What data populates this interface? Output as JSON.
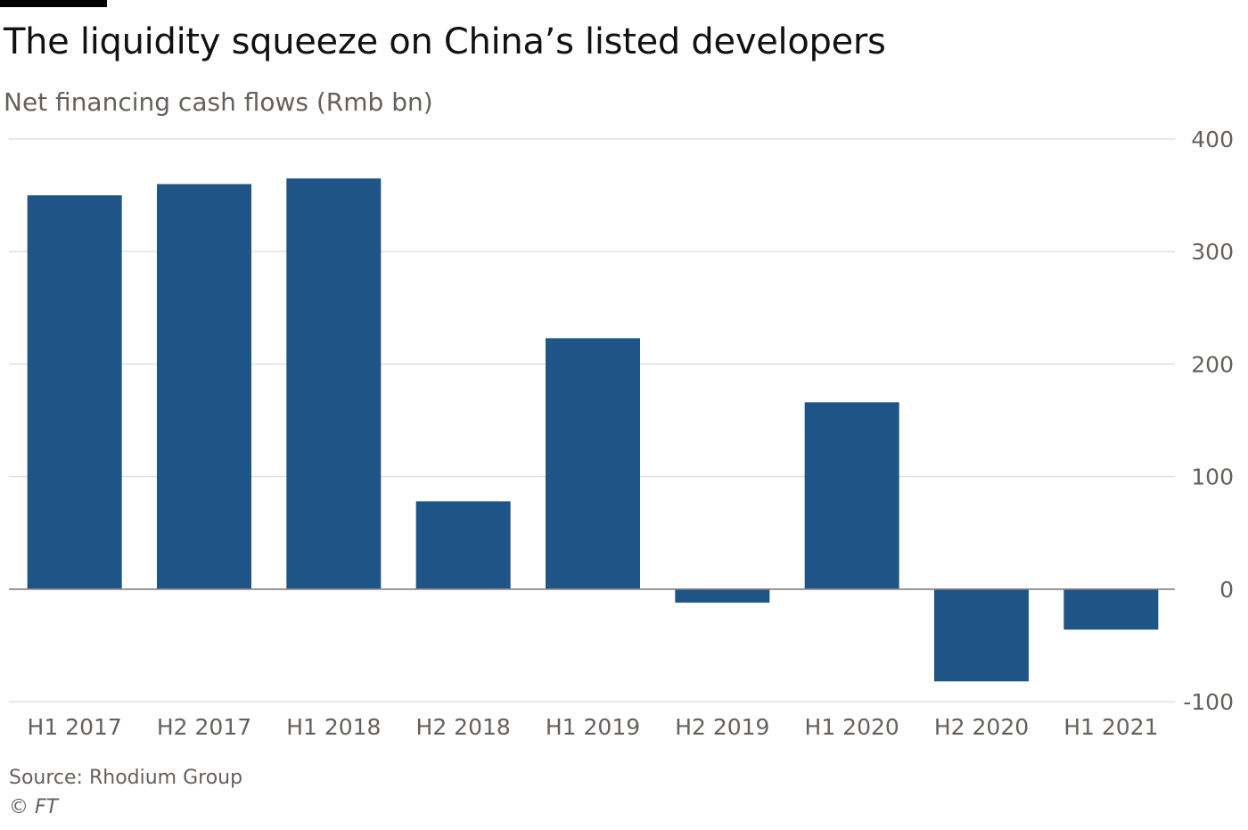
{
  "chart_data": {
    "type": "bar",
    "title": "The liquidity squeeze on China’s listed developers",
    "subtitle": "Net financing cash flows (Rmb bn)",
    "categories": [
      "H1 2017",
      "H2 2017",
      "H1 2018",
      "H2 2018",
      "H1 2019",
      "H2 2019",
      "H1 2020",
      "H2 2020",
      "H1 2021"
    ],
    "values": [
      350,
      360,
      365,
      78,
      223,
      -12,
      166,
      -82,
      -36
    ],
    "ylim": [
      -100,
      400
    ],
    "yticks": [
      -100,
      0,
      100,
      200,
      300,
      400
    ],
    "ytick_labels": [
      "-100",
      "0",
      "100",
      "200",
      "300",
      "400"
    ],
    "grid": true,
    "bar_color": "#1f5487",
    "source": "Source: Rhodium Group",
    "credit": "© FT"
  }
}
